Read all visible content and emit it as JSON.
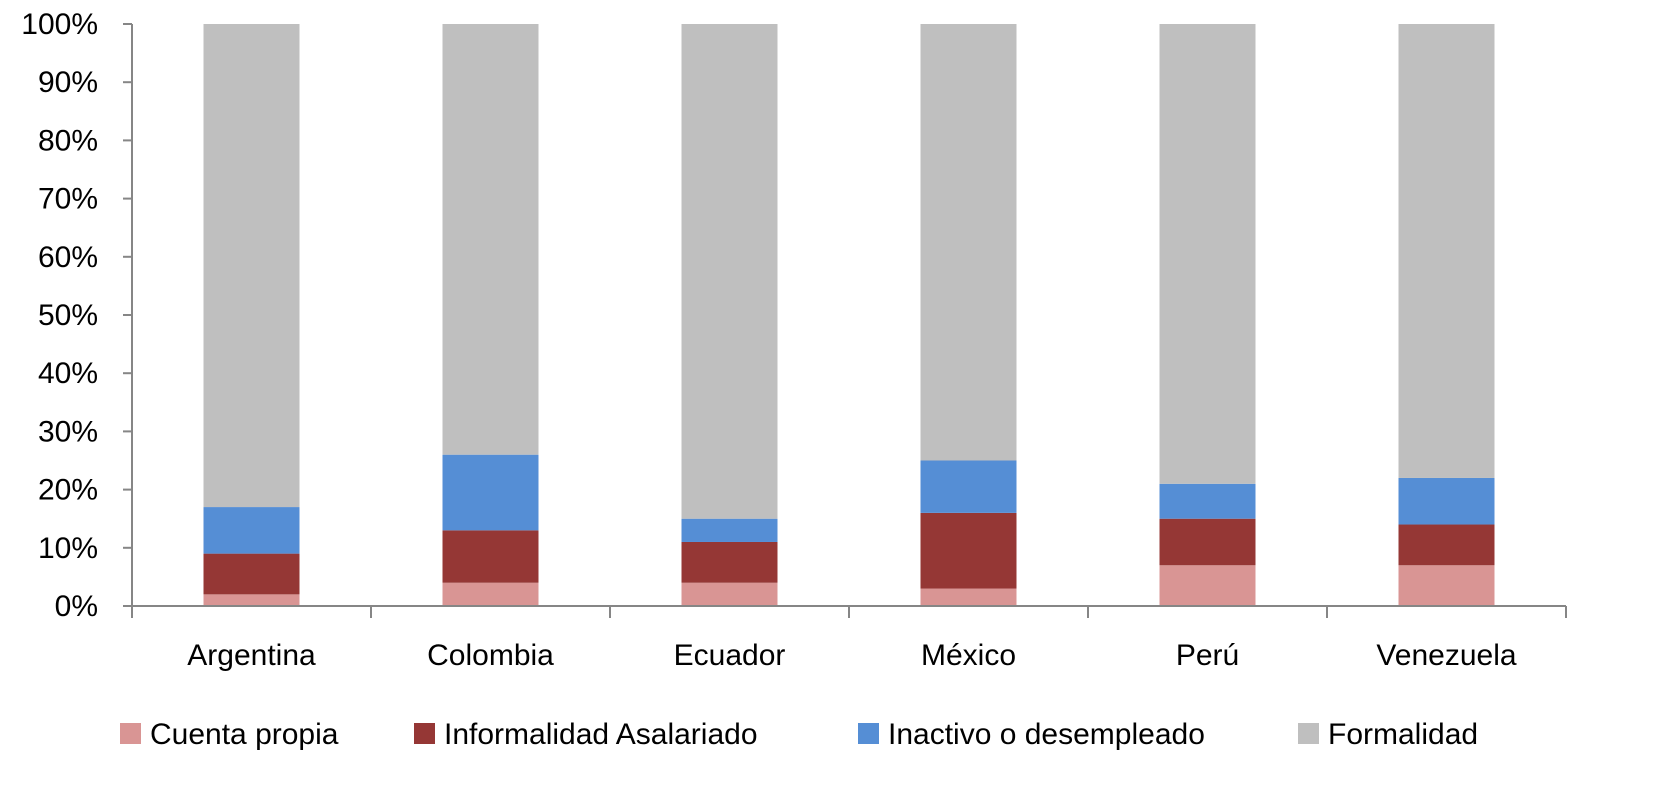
{
  "chart_data": {
    "type": "bar",
    "stacked": true,
    "percent_axis": true,
    "categories": [
      "Argentina",
      "Colombia",
      "Ecuador",
      "México",
      "Perú",
      "Venezuela"
    ],
    "series": [
      {
        "name": "Cuenta propia",
        "color": "#D99594",
        "values": [
          2,
          4,
          4,
          3,
          7,
          7
        ]
      },
      {
        "name": "Informalidad Asalariado",
        "color": "#953735",
        "values": [
          7,
          9,
          7,
          13,
          8,
          7
        ]
      },
      {
        "name": "Inactivo o desempleado",
        "color": "#558ED5",
        "values": [
          8,
          13,
          4,
          9,
          6,
          8
        ]
      },
      {
        "name": "Formalidad",
        "color": "#BFBFBF",
        "values": [
          83,
          74,
          85,
          75,
          79,
          78
        ]
      }
    ],
    "ylim": [
      0,
      100
    ],
    "yticks": [
      0,
      10,
      20,
      30,
      40,
      50,
      60,
      70,
      80,
      90,
      100
    ],
    "ytick_labels": [
      "0%",
      "10%",
      "20%",
      "30%",
      "40%",
      "50%",
      "60%",
      "70%",
      "80%",
      "90%",
      "100%"
    ],
    "legend_position": "bottom",
    "grid": false,
    "title": "",
    "xlabel": "",
    "ylabel": "",
    "axis_color": "#868686"
  }
}
